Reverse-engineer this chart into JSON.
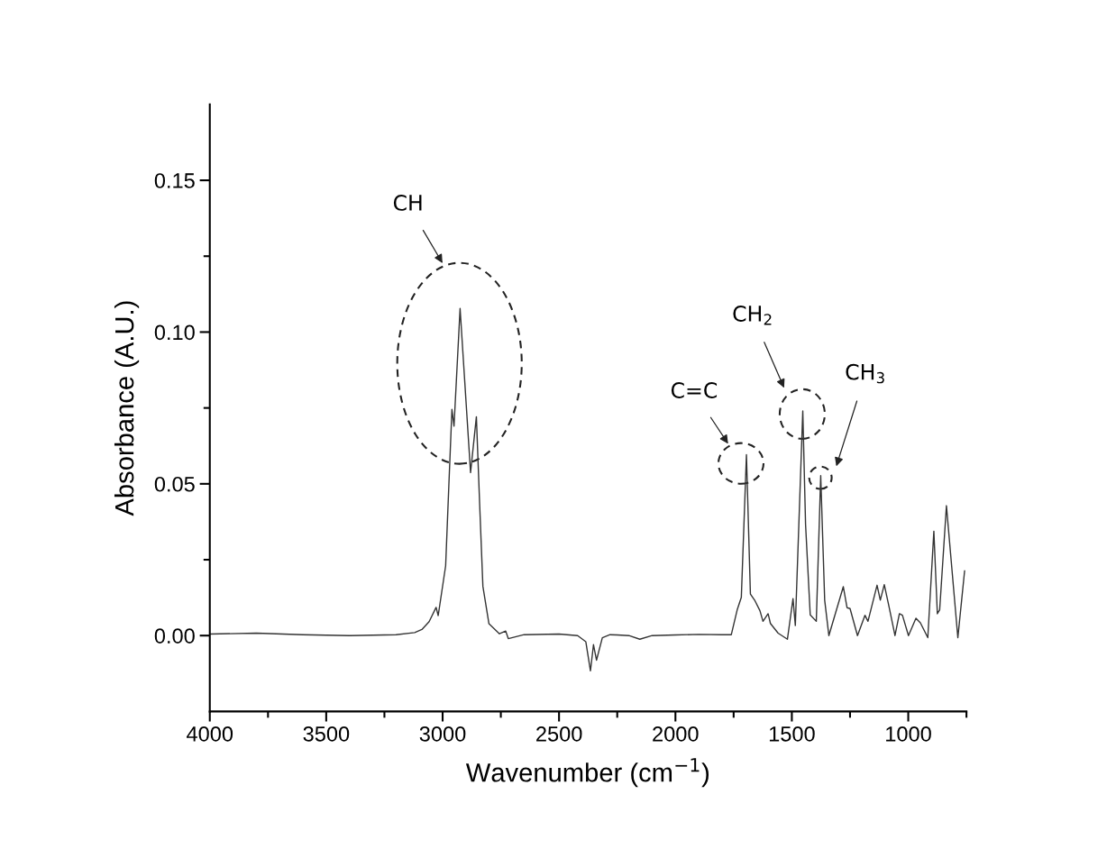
{
  "chart_data": {
    "type": "line",
    "xlabel": "Wavenumber (cm$^{−1}$)",
    "ylabel": "Absorbance (A.U.)",
    "xlim": [
      4000,
      750
    ],
    "ylim": [
      -0.025,
      0.175
    ],
    "xticks": [
      4000,
      {
        "value": 3750,
        "label": null
      },
      3500,
      {
        "value": 3250,
        "label": null
      },
      3000,
      {
        "value": 2750,
        "label": null
      },
      2500,
      {
        "value": 2250,
        "label": null
      },
      2000,
      {
        "value": 1750,
        "label": null
      },
      1500,
      {
        "value": 1250,
        "label": null
      },
      1000,
      {
        "value": 750,
        "label": null
      }
    ],
    "yticks": [
      {
        "value": 0,
        "label": "0.00"
      },
      {
        "value": 0.025,
        "label": null
      },
      {
        "value": 0.05,
        "label": "0.05"
      },
      {
        "value": 0.075,
        "label": null
      },
      {
        "value": 0.1,
        "label": "0.10"
      },
      {
        "value": 0.125,
        "label": null
      },
      {
        "value": 0.15,
        "label": "0.15"
      }
    ],
    "grid": false,
    "legend": false,
    "marker": "none",
    "line_style": "solid",
    "series": [
      {
        "color": "#333333",
        "x": [
          4000,
          3800,
          3600,
          3400,
          3200,
          3120,
          3089,
          3058,
          3028,
          3019,
          2987,
          2973,
          2960,
          2951,
          2925,
          2880,
          2855,
          2841,
          2827,
          2801,
          2756,
          2729,
          2718,
          2650,
          2500,
          2420,
          2385,
          2365,
          2352,
          2339,
          2314,
          2281,
          2250,
          2200,
          2153,
          2100,
          2000,
          1900,
          1800,
          1760,
          1734,
          1717,
          1695,
          1678,
          1660,
          1637,
          1624,
          1602,
          1592,
          1559,
          1519,
          1495,
          1485,
          1453,
          1441,
          1421,
          1395,
          1376,
          1359,
          1341,
          1279,
          1263,
          1250,
          1218,
          1186,
          1173,
          1134,
          1120,
          1103,
          1083,
          1057,
          1038,
          1025,
          999,
          967,
          948,
          916,
          890,
          875,
          865,
          836,
          787,
          758
        ],
        "values": [
          0.0005,
          0.0008,
          0.0003,
          0.0,
          0.0003,
          0.001,
          0.002,
          0.0046,
          0.0093,
          0.0066,
          0.023,
          0.05,
          0.0745,
          0.069,
          0.1078,
          0.0537,
          0.0721,
          0.0434,
          0.0162,
          0.0039,
          0.0006,
          0.0015,
          -0.001,
          0.0003,
          0.0005,
          0.0,
          -0.002,
          -0.0116,
          -0.003,
          -0.0081,
          -0.0007,
          0.0003,
          0.0002,
          0.0,
          -0.0012,
          0.0,
          0.0002,
          0.0004,
          0.0003,
          0.0003,
          0.0087,
          0.0126,
          0.0596,
          0.0137,
          0.0117,
          0.0082,
          0.0047,
          0.0072,
          0.004,
          0.0008,
          -0.0012,
          0.0122,
          0.0033,
          0.074,
          0.0365,
          0.0068,
          0.0047,
          0.0527,
          0.0117,
          0.0,
          0.0161,
          0.0092,
          0.0089,
          0.0,
          0.0067,
          0.0047,
          0.0166,
          0.0117,
          0.0168,
          0.0097,
          0.0,
          0.0072,
          0.0067,
          0.0,
          0.0057,
          0.0042,
          -0.0007,
          0.0344,
          0.0072,
          0.0085,
          0.0428,
          -0.0007,
          0.0213
        ]
      }
    ],
    "annotations": [
      "CH",
      "C=C",
      "CH$_{2}$",
      "CH$_{3}$"
    ]
  }
}
